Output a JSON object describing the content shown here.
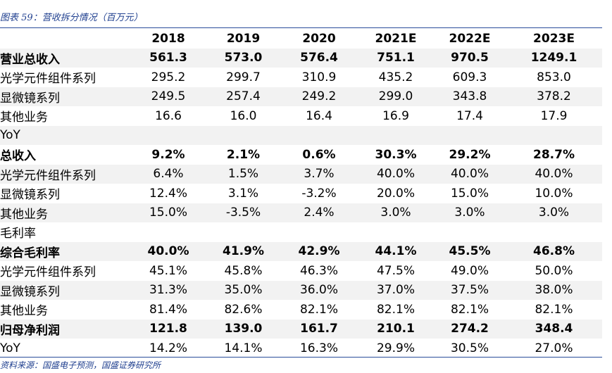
{
  "caption": "图表 59：营收拆分情况（百万元）",
  "source": "资料来源：国盛电子预测，国盛证券研究所",
  "header": [
    "",
    "2018",
    "2019",
    "2020",
    "2021E",
    "2022E",
    "2023E"
  ],
  "rows": [
    {
      "label": "营业总收入",
      "values": [
        "561.3",
        "573.0",
        "576.4",
        "751.1",
        "970.5",
        "1249.1"
      ],
      "bold": true,
      "shade": true
    },
    {
      "label": "光学元件组件系列",
      "values": [
        "295.2",
        "299.7",
        "310.9",
        "435.2",
        "609.3",
        "853.0"
      ],
      "bold": false,
      "shade": false
    },
    {
      "label": "显微镜系列",
      "values": [
        "249.5",
        "257.4",
        "249.2",
        "299.0",
        "343.8",
        "378.2"
      ],
      "bold": false,
      "shade": true
    },
    {
      "label": "其他业务",
      "values": [
        "16.6",
        "16.0",
        "16.4",
        "16.9",
        "17.4",
        "17.9"
      ],
      "bold": false,
      "shade": false
    },
    {
      "label": "YoY",
      "values": [
        "",
        "",
        "",
        "",
        "",
        ""
      ],
      "bold": false,
      "shade": true
    },
    {
      "label": "总收入",
      "values": [
        "9.2%",
        "2.1%",
        "0.6%",
        "30.3%",
        "29.2%",
        "28.7%"
      ],
      "bold": true,
      "shade": false
    },
    {
      "label": "光学元件组件系列",
      "values": [
        "6.4%",
        "1.5%",
        "3.7%",
        "40.0%",
        "40.0%",
        "40.0%"
      ],
      "bold": false,
      "shade": true
    },
    {
      "label": "显微镜系列",
      "values": [
        "12.4%",
        "3.1%",
        "-3.2%",
        "20.0%",
        "15.0%",
        "10.0%"
      ],
      "bold": false,
      "shade": false
    },
    {
      "label": "其他业务",
      "values": [
        "15.0%",
        "-3.5%",
        "2.4%",
        "3.0%",
        "3.0%",
        "3.0%"
      ],
      "bold": false,
      "shade": true
    },
    {
      "label": "毛利率",
      "values": [
        "",
        "",
        "",
        "",
        "",
        ""
      ],
      "bold": false,
      "shade": false
    },
    {
      "label": "综合毛利率",
      "values": [
        "40.0%",
        "41.9%",
        "42.9%",
        "44.1%",
        "45.5%",
        "46.8%"
      ],
      "bold": true,
      "shade": true
    },
    {
      "label": "光学元件组件系列",
      "values": [
        "45.1%",
        "45.8%",
        "46.3%",
        "47.5%",
        "49.0%",
        "50.0%"
      ],
      "bold": false,
      "shade": false
    },
    {
      "label": "显微镜系列",
      "values": [
        "31.3%",
        "35.0%",
        "36.0%",
        "37.0%",
        "37.5%",
        "38.0%"
      ],
      "bold": false,
      "shade": true
    },
    {
      "label": "其他业务",
      "values": [
        "81.4%",
        "82.6%",
        "82.1%",
        "82.1%",
        "82.1%",
        "82.1%"
      ],
      "bold": false,
      "shade": false
    },
    {
      "label": "归母净利润",
      "values": [
        "121.8",
        "139.0",
        "161.7",
        "210.1",
        "274.2",
        "348.4"
      ],
      "bold": true,
      "shade": true
    },
    {
      "label": "YoY",
      "values": [
        "14.2%",
        "14.1%",
        "16.3%",
        "29.9%",
        "30.5%",
        "27.0%"
      ],
      "bold": false,
      "shade": false
    }
  ]
}
